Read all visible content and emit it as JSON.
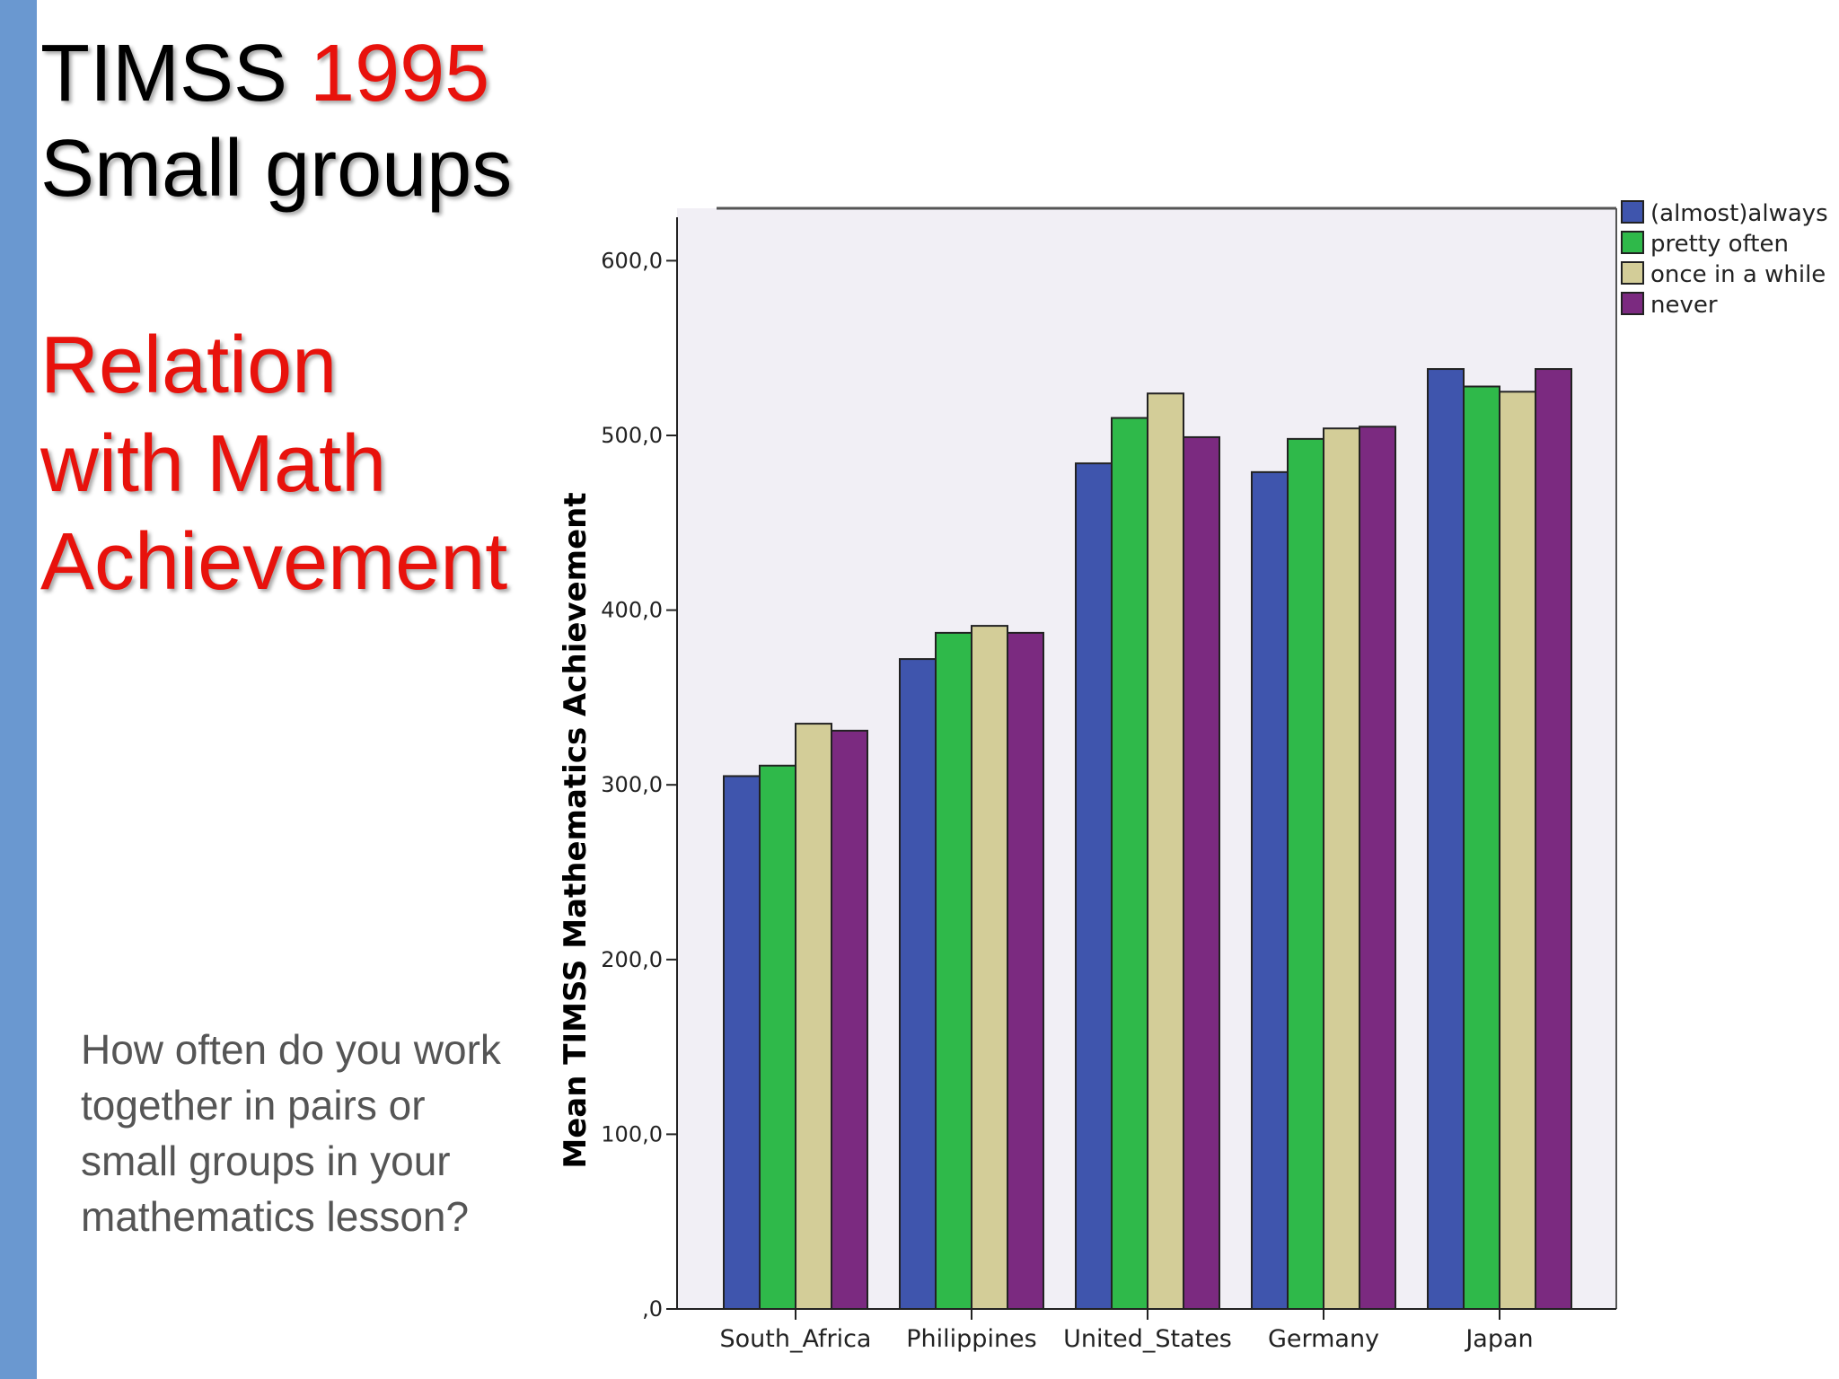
{
  "slide": {
    "title_prefix": "TIMSS ",
    "title_year": "1995",
    "title_line2": "Small groups",
    "subtitle_lines": [
      "Relation",
      "with Math",
      "Achievement"
    ],
    "question": "How often do you work together in pairs or small groups in your mathematics lesson?",
    "colors": {
      "accent_bar": "#6a98d0",
      "title_text": "#000000",
      "highlight_text": "#e8120c",
      "question_text": "#555555"
    }
  },
  "chart_data": {
    "type": "bar",
    "title": "",
    "xlabel": "",
    "ylabel": "Mean TIMSS Mathematics Achievement",
    "ylim": [
      0,
      630
    ],
    "yticks": [
      0,
      100,
      200,
      300,
      400,
      500,
      600
    ],
    "ytick_labels": [
      ",0",
      "100,0",
      "200,0",
      "300,0",
      "400,0",
      "500,0",
      "600,0"
    ],
    "categories": [
      "South_Africa",
      "Philippines",
      "United_States",
      "Germany",
      "Japan"
    ],
    "series": [
      {
        "name": "(almost)always",
        "color": "#3f55ad",
        "values": [
          305,
          372,
          484,
          479,
          538
        ]
      },
      {
        "name": "pretty often",
        "color": "#2fb94a",
        "values": [
          311,
          387,
          510,
          498,
          528
        ]
      },
      {
        "name": "once in a while",
        "color": "#d3cd98",
        "values": [
          335,
          391,
          524,
          504,
          525
        ]
      },
      {
        "name": "never",
        "color": "#7b2a80",
        "values": [
          331,
          387,
          499,
          505,
          538
        ]
      }
    ],
    "grid": false,
    "legend_position": "top-right",
    "plot_background": "#f1eff5"
  }
}
